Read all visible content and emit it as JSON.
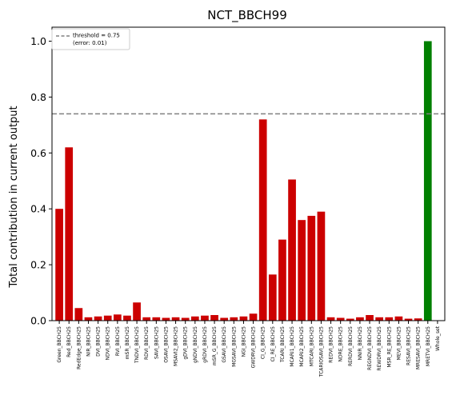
{
  "chart_data": {
    "type": "bar",
    "title": "NCT_BBCH99",
    "xlabel": "",
    "ylabel": "Total contribution in current output",
    "ylim": [
      0,
      1.05
    ],
    "yticks": [
      "0.0",
      "0.2",
      "0.4",
      "0.6",
      "0.8",
      "1.0"
    ],
    "grid": false,
    "legend": {
      "placement": "top-left",
      "entries": [
        "threshold = 0.75",
        "(error: 0.01)"
      ]
    },
    "threshold": 0.74,
    "colors": {
      "bar": "#cc0000",
      "highlight": "#008000",
      "threshold_line": "#808080"
    },
    "categories": [
      "Green_BBCH25",
      "Red_BBCH25",
      "RedEdge_BBCH25",
      "NIR_BBCH25",
      "DVI_BBCH25",
      "NDVI_BBCH25",
      "RVI_BBCH25",
      "mSR_BBCH25",
      "TNDVI_BBCH25",
      "RDVI_BBCH25",
      "SAVI_BBCH25",
      "OSAVI_BBCH25",
      "MSAVI2_BBCH25",
      "gDVI_BBCH25",
      "gNDVI_BBCH25",
      "gRDVI_BBCH25",
      "mSR_G_BBCH25",
      "GSAVI_BBCH25",
      "MGSAVI_BBCH25",
      "NGI_BBCH25",
      "GWDRVI_BBCH25",
      "CI_G_BBCH25",
      "CI_RE_BBCH25",
      "TCARI_BBCH25",
      "MCARI1_BBCH25",
      "MCARI2_BBCH25",
      "MTCARI_BBCH25",
      "TCARIOSAVI_BBCH25",
      "REDVI_BBCH25",
      "NDRE_BBCH25",
      "RERDVI_BBCH25",
      "NNIR_BBCH25",
      "REGNDVI_BBCH25",
      "REWDRVI_BBCH25",
      "MSR_RE_BBCH25",
      "MEVI_BBCH25",
      "RESAVI_BBCH25",
      "MRESAVI_BBCH25",
      "MRETVI_BBCH25",
      "Whole_set"
    ],
    "values": [
      0.4,
      0.62,
      0.045,
      0.012,
      0.015,
      0.018,
      0.022,
      0.018,
      0.065,
      0.012,
      0.012,
      0.01,
      0.012,
      0.01,
      0.015,
      0.018,
      0.02,
      0.01,
      0.012,
      0.015,
      0.025,
      0.72,
      0.165,
      0.29,
      0.505,
      0.36,
      0.375,
      0.39,
      0.012,
      0.01,
      0.007,
      0.012,
      0.02,
      0.012,
      0.012,
      0.015,
      0.007,
      0.008,
      1.0,
      null
    ],
    "highlight_index": 38
  }
}
